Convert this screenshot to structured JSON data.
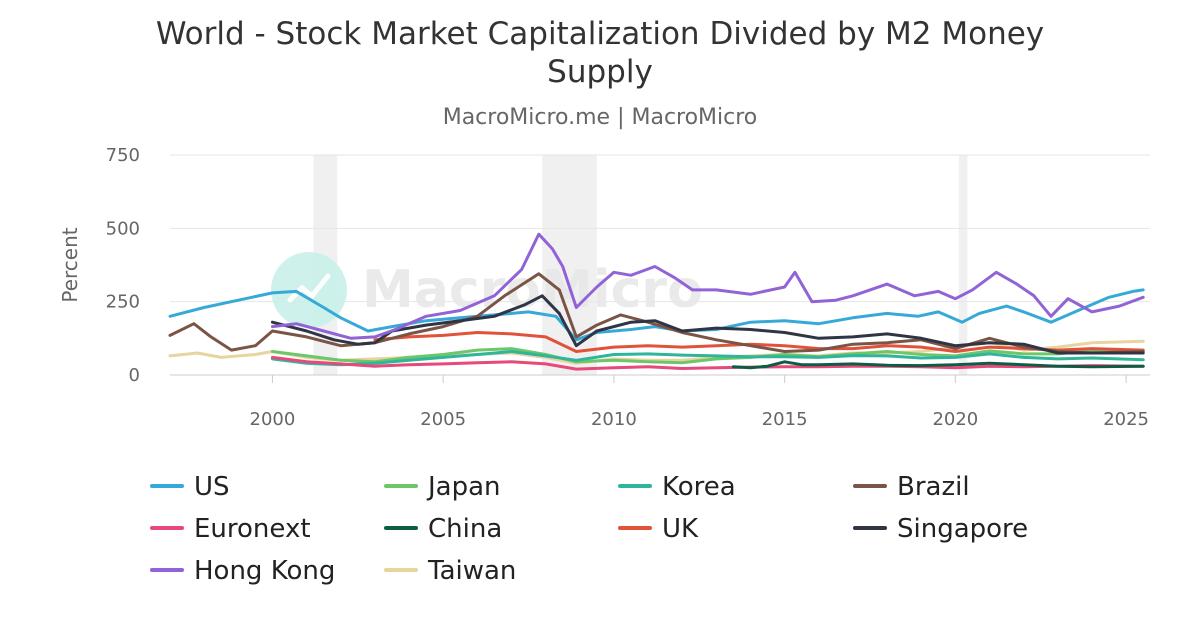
{
  "chart_data": {
    "type": "line",
    "title_line1": "World - Stock Market Capitalization Divided by M2 Money",
    "title_line2": "Supply",
    "subtitle": "MacroMicro.me | MacroMicro",
    "ylabel": "Percent",
    "xlabel": "",
    "ylim": [
      0,
      750
    ],
    "yticks": [
      0,
      250,
      500,
      750
    ],
    "xlim": [
      1997.0,
      2025.7
    ],
    "xticks": [
      2000,
      2005,
      2010,
      2015,
      2020,
      2025
    ],
    "grid": true,
    "legend_position": "bottom",
    "watermark": "MacroMicro",
    "shaded_periods": [
      [
        2001.2,
        2001.9
      ],
      [
        2007.9,
        2009.5
      ],
      [
        2020.1,
        2020.35
      ]
    ],
    "series": [
      {
        "name": "US",
        "color": "#36a9d8",
        "x": [
          1997.0,
          1998.0,
          1999.0,
          2000.0,
          2000.7,
          2001.5,
          2002.0,
          2002.8,
          2003.5,
          2004.5,
          2005.5,
          2006.5,
          2007.5,
          2008.3,
          2008.9,
          2009.5,
          2010.5,
          2011.2,
          2012.0,
          2013.0,
          2014.0,
          2015.0,
          2016.0,
          2017.0,
          2018.0,
          2018.9,
          2019.5,
          2020.2,
          2020.7,
          2021.5,
          2022.0,
          2022.8,
          2023.5,
          2024.5,
          2025.2,
          2025.5
        ],
        "y": [
          200,
          230,
          255,
          280,
          285,
          230,
          195,
          150,
          165,
          185,
          195,
          205,
          215,
          200,
          120,
          145,
          155,
          165,
          150,
          155,
          180,
          185,
          175,
          195,
          210,
          200,
          215,
          180,
          210,
          235,
          215,
          180,
          215,
          265,
          285,
          290
        ]
      },
      {
        "name": "Japan",
        "color": "#6dc66a",
        "x": [
          2000.0,
          2001.0,
          2002.0,
          2003.0,
          2004.0,
          2005.0,
          2006.0,
          2007.0,
          2008.0,
          2008.9,
          2010.0,
          2011.0,
          2012.0,
          2013.0,
          2014.0,
          2015.0,
          2016.0,
          2017.0,
          2018.0,
          2019.0,
          2020.0,
          2021.0,
          2022.0,
          2023.0,
          2024.0,
          2025.5
        ],
        "y": [
          80,
          65,
          50,
          45,
          60,
          70,
          85,
          90,
          70,
          45,
          50,
          45,
          42,
          55,
          60,
          70,
          62,
          72,
          80,
          70,
          65,
          82,
          72,
          72,
          82,
          80
        ]
      },
      {
        "name": "Korea",
        "color": "#2fb59b",
        "x": [
          2000.0,
          2001.0,
          2002.0,
          2003.0,
          2004.0,
          2005.0,
          2006.0,
          2007.0,
          2008.0,
          2008.9,
          2010.0,
          2011.0,
          2012.0,
          2013.0,
          2014.0,
          2015.0,
          2016.0,
          2017.0,
          2018.0,
          2019.0,
          2020.0,
          2021.0,
          2022.0,
          2023.0,
          2024.0,
          2025.5
        ],
        "y": [
          55,
          40,
          35,
          40,
          50,
          60,
          70,
          80,
          65,
          50,
          70,
          72,
          68,
          65,
          62,
          62,
          60,
          66,
          65,
          58,
          60,
          72,
          60,
          55,
          58,
          52
        ]
      },
      {
        "name": "Brazil",
        "color": "#7a5445",
        "x": [
          1997.0,
          1997.7,
          1998.2,
          1998.8,
          1999.5,
          2000.0,
          2001.0,
          2002.0,
          2003.0,
          2004.0,
          2005.0,
          2006.0,
          2006.8,
          2007.8,
          2008.4,
          2008.9,
          2009.5,
          2010.2,
          2011.0,
          2012.0,
          2013.0,
          2014.0,
          2015.0,
          2016.0,
          2017.0,
          2018.0,
          2019.0,
          2020.0,
          2021.0,
          2022.0,
          2023.0,
          2024.0,
          2025.5
        ],
        "y": [
          135,
          175,
          130,
          85,
          100,
          150,
          130,
          100,
          110,
          140,
          165,
          200,
          270,
          345,
          290,
          130,
          170,
          205,
          180,
          145,
          120,
          100,
          80,
          85,
          105,
          110,
          120,
          90,
          125,
          95,
          80,
          75,
          80
        ]
      },
      {
        "name": "Euronext",
        "color": "#e6497a",
        "x": [
          2000.0,
          2001.0,
          2002.0,
          2003.0,
          2004.0,
          2005.0,
          2006.0,
          2007.0,
          2008.0,
          2008.9,
          2010.0,
          2011.0,
          2012.0,
          2013.0,
          2014.0,
          2015.0,
          2016.0,
          2017.0,
          2018.0,
          2019.0,
          2020.0,
          2021.0,
          2022.0,
          2023.0,
          2024.0,
          2025.5
        ],
        "y": [
          60,
          45,
          38,
          30,
          35,
          38,
          42,
          45,
          38,
          20,
          25,
          28,
          22,
          25,
          27,
          28,
          28,
          30,
          30,
          28,
          25,
          30,
          28,
          30,
          32,
          30
        ]
      },
      {
        "name": "China",
        "color": "#0f5c45",
        "x": [
          2013.5,
          2014.0,
          2014.5,
          2015.0,
          2015.5,
          2016.0,
          2017.0,
          2018.0,
          2019.0,
          2020.0,
          2021.0,
          2022.0,
          2023.0,
          2024.0,
          2025.5
        ],
        "y": [
          28,
          25,
          30,
          45,
          35,
          35,
          38,
          33,
          32,
          35,
          40,
          35,
          30,
          28,
          30
        ]
      },
      {
        "name": "UK",
        "color": "#e0533a",
        "x": [
          2003.0,
          2004.0,
          2005.0,
          2006.0,
          2007.0,
          2008.0,
          2008.9,
          2010.0,
          2011.0,
          2012.0,
          2013.0,
          2014.0,
          2015.0,
          2016.0,
          2017.0,
          2018.0,
          2019.0,
          2020.0,
          2021.0,
          2022.0,
          2023.0,
          2024.0,
          2025.5
        ],
        "y": [
          120,
          130,
          135,
          145,
          140,
          130,
          80,
          95,
          100,
          95,
          100,
          105,
          100,
          90,
          90,
          100,
          95,
          80,
          95,
          90,
          85,
          90,
          85
        ]
      },
      {
        "name": "Singapore",
        "color": "#2f3545",
        "x": [
          2000.0,
          2001.0,
          2001.8,
          2002.5,
          2003.0,
          2003.5,
          2004.5,
          2005.5,
          2006.5,
          2007.4,
          2007.9,
          2008.4,
          2008.9,
          2009.5,
          2010.5,
          2011.2,
          2012.0,
          2013.0,
          2014.0,
          2015.0,
          2016.0,
          2017.0,
          2018.0,
          2019.0,
          2020.0,
          2021.0,
          2022.0,
          2023.0,
          2024.0,
          2025.5
        ],
        "y": [
          180,
          150,
          120,
          105,
          110,
          150,
          170,
          185,
          200,
          240,
          270,
          210,
          100,
          150,
          180,
          185,
          150,
          160,
          155,
          145,
          125,
          130,
          140,
          125,
          100,
          110,
          105,
          75,
          75,
          75
        ]
      },
      {
        "name": "Hong Kong",
        "color": "#9163d7",
        "x": [
          2000.0,
          2000.7,
          2001.5,
          2002.3,
          2003.0,
          2003.6,
          2004.5,
          2005.5,
          2006.5,
          2007.3,
          2007.8,
          2008.2,
          2008.5,
          2008.9,
          2009.5,
          2010.0,
          2010.5,
          2011.2,
          2011.8,
          2012.3,
          2013.0,
          2014.0,
          2015.0,
          2015.3,
          2015.8,
          2016.5,
          2017.0,
          2018.0,
          2018.8,
          2019.5,
          2020.0,
          2020.5,
          2021.2,
          2021.8,
          2022.3,
          2022.8,
          2023.3,
          2024.0,
          2024.8,
          2025.5
        ],
        "y": [
          165,
          175,
          150,
          125,
          130,
          155,
          200,
          220,
          270,
          360,
          480,
          430,
          370,
          230,
          300,
          350,
          340,
          370,
          330,
          290,
          290,
          275,
          300,
          350,
          250,
          255,
          270,
          310,
          270,
          285,
          260,
          290,
          350,
          310,
          270,
          200,
          260,
          215,
          235,
          265
        ]
      },
      {
        "name": "Taiwan",
        "color": "#e7d49e",
        "x": [
          1997.0,
          1997.8,
          1998.5,
          1999.5,
          2000.0,
          2001.0,
          2002.0,
          2003.0,
          2004.0,
          2005.0,
          2006.0,
          2007.0,
          2008.0,
          2008.9,
          2010.0,
          2011.0,
          2012.0,
          2013.0,
          2014.0,
          2015.0,
          2016.0,
          2017.0,
          2018.0,
          2019.0,
          2020.0,
          2021.0,
          2022.0,
          2023.0,
          2024.0,
          2025.5
        ],
        "y": [
          65,
          75,
          60,
          70,
          80,
          60,
          50,
          55,
          60,
          65,
          70,
          75,
          60,
          40,
          55,
          50,
          50,
          60,
          65,
          70,
          65,
          75,
          75,
          80,
          95,
          110,
          85,
          95,
          110,
          115
        ]
      }
    ]
  }
}
